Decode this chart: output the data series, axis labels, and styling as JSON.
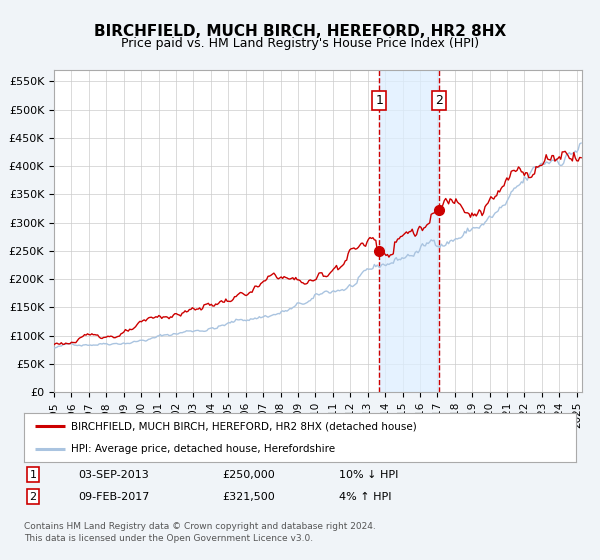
{
  "title": "BIRCHFIELD, MUCH BIRCH, HEREFORD, HR2 8HX",
  "subtitle": "Price paid vs. HM Land Registry's House Price Index (HPI)",
  "title_fontsize": 11,
  "subtitle_fontsize": 9,
  "ylabel_ticks": [
    "£0",
    "£50K",
    "£100K",
    "£150K",
    "£200K",
    "£250K",
    "£300K",
    "£350K",
    "£400K",
    "£450K",
    "£500K",
    "£550K"
  ],
  "ytick_values": [
    0,
    50000,
    100000,
    150000,
    200000,
    250000,
    300000,
    350000,
    400000,
    450000,
    500000,
    550000
  ],
  "ylim": [
    0,
    570000
  ],
  "xlim_start": 1995.0,
  "xlim_end": 2025.3,
  "background_color": "#f0f4f8",
  "plot_bg_color": "#ffffff",
  "grid_color": "#cccccc",
  "hpi_line_color": "#aac4e0",
  "price_line_color": "#cc0000",
  "shade_color": "#ddeeff",
  "vline_color": "#cc0000",
  "point1_x": 2013.67,
  "point1_y": 250000,
  "point2_x": 2017.1,
  "point2_y": 321500,
  "legend1_label": "BIRCHFIELD, MUCH BIRCH, HEREFORD, HR2 8HX (detached house)",
  "legend2_label": "HPI: Average price, detached house, Herefordshire",
  "annotation1_date": "03-SEP-2013",
  "annotation1_price": "£250,000",
  "annotation1_hpi": "10% ↓ HPI",
  "annotation2_date": "09-FEB-2017",
  "annotation2_price": "£321,500",
  "annotation2_hpi": "4% ↑ HPI",
  "footer1": "Contains HM Land Registry data © Crown copyright and database right 2024.",
  "footer2": "This data is licensed under the Open Government Licence v3.0."
}
